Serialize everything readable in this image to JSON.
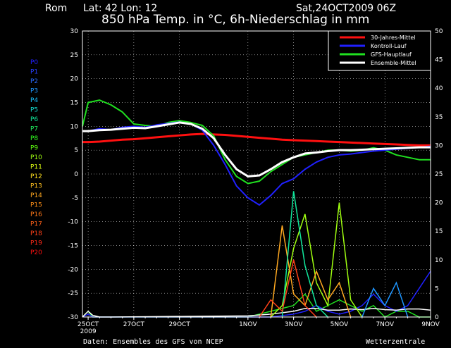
{
  "header": {
    "location": "Rom",
    "coords": "Lat: 42 Lon: 12",
    "title": "850 hPa Temp. in °C, 6h-Niederschlag in mm",
    "run": "Sat,24OCT2009 06Z"
  },
  "footer": {
    "source": "Daten: Ensembles des GFS von NCEP",
    "brand": "Wetterzentrale"
  },
  "members": [
    "P0",
    "P1",
    "P2",
    "P3",
    "P4",
    "P5",
    "P6",
    "P7",
    "P8",
    "P9",
    "P10",
    "P11",
    "P12",
    "P13",
    "P14",
    "P15",
    "P16",
    "P17",
    "P18",
    "P19",
    "P20"
  ],
  "member_colors": [
    "#2020ff",
    "#2840ff",
    "#2a6cff",
    "#1e96ff",
    "#18c0ff",
    "#14dcd0",
    "#10e89c",
    "#20f060",
    "#30ff20",
    "#60ff10",
    "#a0ff10",
    "#e0ff10",
    "#ffe020",
    "#ffc020",
    "#ffa820",
    "#ff9018",
    "#ff7818",
    "#ff6018",
    "#ff4018",
    "#ff2818",
    "#ff1010"
  ],
  "chart_data": {
    "type": "line",
    "title": "850 hPa Temp. in °C, 6h-Niederschlag in mm",
    "x_unit": "day after 25OCT2009 00Z",
    "x_ticks": [
      {
        "label": "25OCT",
        "sub": "2009",
        "x": 0
      },
      {
        "label": "27OCT",
        "x": 2
      },
      {
        "label": "29OCT",
        "x": 4
      },
      {
        "label": "1NOV",
        "x": 7
      },
      {
        "label": "3NOV",
        "x": 9
      },
      {
        "label": "5NOV",
        "x": 11
      },
      {
        "label": "7NOV",
        "x": 13
      },
      {
        "label": "9NOV",
        "x": 15
      }
    ],
    "xlim": [
      -0.25,
      15
    ],
    "y_left": {
      "label": "°C",
      "ylim": [
        -30,
        30
      ],
      "ticks": [
        30,
        25,
        20,
        15,
        10,
        5,
        0,
        -5,
        -10,
        -15,
        -20,
        -25,
        -30
      ]
    },
    "y_right": {
      "label": "mm",
      "ylim": [
        0,
        50
      ],
      "ticks": [
        50,
        45,
        40,
        35,
        30,
        25,
        20,
        15,
        10,
        5,
        0
      ]
    },
    "legend": {
      "placement": "top-right",
      "entries": [
        {
          "name": "30-Jahres-Mittel",
          "color": "#ff1010"
        },
        {
          "name": "Kontroll-Lauf",
          "color": "#2020ff"
        },
        {
          "name": "GFS-Hauptlauf",
          "color": "#20e020"
        },
        {
          "name": "Ensemble-Mittel",
          "color": "#ffffff"
        }
      ]
    },
    "x": [
      -0.25,
      0,
      0.5,
      1,
      1.5,
      2,
      2.5,
      3,
      3.5,
      4,
      4.5,
      5,
      5.5,
      6,
      6.5,
      7,
      7.5,
      8,
      8.5,
      9,
      9.5,
      10,
      10.5,
      11,
      11.5,
      12,
      12.5,
      13,
      13.5,
      14,
      14.5,
      15
    ],
    "series": [
      {
        "name": "30-Jahres-Mittel",
        "color": "#ff1010",
        "width": 3,
        "values": [
          6.7,
          6.7,
          6.8,
          7.0,
          7.2,
          7.3,
          7.5,
          7.7,
          7.9,
          8.1,
          8.3,
          8.4,
          8.3,
          8.2,
          8.0,
          7.8,
          7.6,
          7.4,
          7.2,
          7.1,
          7.0,
          6.9,
          6.8,
          6.7,
          6.6,
          6.5,
          6.4,
          6.3,
          6.2,
          6.1,
          6.0,
          6.0
        ]
      },
      {
        "name": "Ensemble-Mittel",
        "color": "#ffffff",
        "width": 3,
        "values": [
          9.0,
          9.0,
          9.2,
          9.3,
          9.5,
          9.7,
          9.6,
          10.0,
          10.4,
          10.8,
          10.5,
          9.5,
          7.5,
          4.0,
          1.0,
          -0.5,
          -0.3,
          1.0,
          2.5,
          3.5,
          4.3,
          4.5,
          4.8,
          5.0,
          5.0,
          5.1,
          5.2,
          5.3,
          5.4,
          5.5,
          5.6,
          5.6
        ]
      },
      {
        "name": "GFS-Hauptlauf",
        "color": "#20e020",
        "width": 2,
        "values": [
          10.0,
          15.0,
          15.5,
          14.5,
          13.0,
          10.5,
          10.2,
          10.0,
          10.8,
          11.2,
          10.8,
          10.2,
          8.0,
          3.0,
          -0.5,
          -2.0,
          -1.5,
          0.5,
          2.0,
          3.5,
          4.0,
          4.5,
          5.0,
          5.0,
          4.8,
          5.0,
          5.5,
          5.0,
          4.0,
          3.5,
          3.0,
          3.0
        ]
      },
      {
        "name": "Kontroll-Lauf",
        "color": "#2020ff",
        "width": 2,
        "values": [
          9.0,
          9.0,
          9.5,
          9.3,
          9.8,
          10.0,
          9.8,
          10.3,
          10.6,
          10.9,
          10.5,
          9.2,
          6.0,
          2.0,
          -2.5,
          -5.0,
          -6.5,
          -4.5,
          -2.0,
          -1.0,
          1.0,
          2.5,
          3.5,
          4.0,
          4.2,
          4.5,
          4.8,
          5.0,
          5.2,
          5.4,
          5.6,
          5.8
        ]
      }
    ],
    "precip_series": [
      {
        "name": "GFS-Hauptlauf",
        "color": "#20e020",
        "x": [
          -0.25,
          0,
          0.2,
          0.5,
          1,
          7,
          8,
          9,
          9.5,
          10,
          10.5,
          11,
          11.5,
          12,
          12.5,
          13,
          13.5,
          14,
          14.5,
          15
        ],
        "values": [
          0,
          1,
          0,
          0,
          0,
          0,
          1,
          2,
          4,
          1,
          2,
          3,
          2,
          1,
          2,
          0,
          1,
          1,
          0,
          0
        ]
      },
      {
        "name": "Kontroll-Lauf",
        "color": "#2020ff",
        "x": [
          -0.25,
          0,
          0.2,
          0.5,
          1,
          7,
          8,
          9,
          9.5,
          10,
          10.5,
          11,
          11.5,
          12,
          12.5,
          13,
          13.5,
          14,
          14.5,
          15
        ],
        "values": [
          0,
          0.5,
          0,
          0,
          0,
          0,
          0,
          0.5,
          1,
          2,
          1,
          0.5,
          1,
          2,
          4,
          2,
          1,
          2,
          5,
          8
        ]
      },
      {
        "name": "Ensemble-Mittel",
        "color": "#ffffff",
        "x": [
          -0.25,
          0,
          0.2,
          0.5,
          1,
          7,
          8,
          9,
          9.5,
          10,
          10.5,
          11,
          11.5,
          12,
          12.5,
          13,
          13.5,
          14,
          14.5,
          15
        ],
        "values": [
          0,
          1,
          0.3,
          0,
          0,
          0.2,
          0.5,
          1,
          1.5,
          1.5,
          1.2,
          1.2,
          1.4,
          1.3,
          1.5,
          1.3,
          1.2,
          1.4,
          1.4,
          1.2
        ]
      },
      {
        "name": "P10",
        "color": "#a0ff10",
        "x": [
          8,
          8.5,
          9,
          9.5,
          10,
          10.5,
          11,
          11.5,
          12
        ],
        "values": [
          0,
          2,
          12,
          18,
          6,
          2,
          20,
          3,
          0
        ]
      },
      {
        "name": "P14",
        "color": "#ffa820",
        "x": [
          8,
          8.5,
          9,
          9.5,
          10,
          10.5,
          11,
          11.5
        ],
        "values": [
          0,
          16,
          4,
          2,
          8,
          3,
          6,
          0
        ]
      },
      {
        "name": "P6",
        "color": "#10e89c",
        "x": [
          8.5,
          9,
          9.5,
          10,
          10.5
        ],
        "values": [
          0,
          22,
          9,
          2,
          0
        ]
      },
      {
        "name": "P18",
        "color": "#ff4018",
        "x": [
          7.5,
          8,
          8.5,
          9,
          9.5,
          10
        ],
        "values": [
          0,
          3,
          1,
          10,
          2,
          0
        ]
      },
      {
        "name": "P3",
        "color": "#1e96ff",
        "x": [
          12,
          12.5,
          13,
          13.5,
          14
        ],
        "values": [
          0,
          5,
          2,
          6,
          0
        ]
      }
    ]
  }
}
